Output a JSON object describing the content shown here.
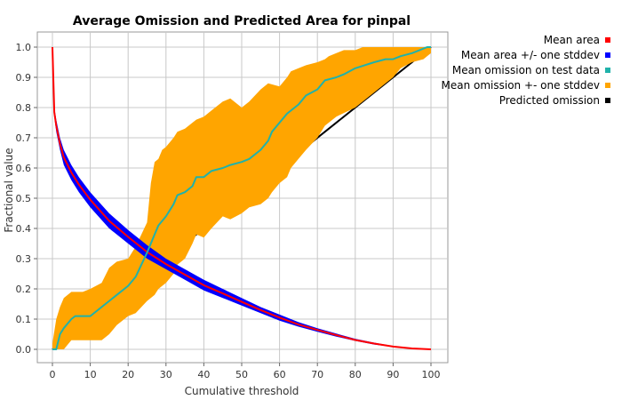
{
  "chart_data": {
    "type": "line",
    "title": "Average Omission and Predicted Area for pinpal",
    "xlabel": "Cumulative threshold",
    "ylabel": "Fractional value",
    "xlim": [
      0,
      100
    ],
    "ylim": [
      0,
      1
    ],
    "xticks": [
      0,
      10,
      20,
      30,
      40,
      50,
      60,
      70,
      80,
      90,
      100
    ],
    "yticks": [
      0.0,
      0.1,
      0.2,
      0.3,
      0.4,
      0.5,
      0.6,
      0.7,
      0.8,
      0.9,
      1.0
    ],
    "ytick_labels": [
      "0.0",
      "0.1",
      "0.2",
      "0.3",
      "0.4",
      "0.5",
      "0.6",
      "0.7",
      "0.8",
      "0.9",
      "1.0"
    ],
    "grid": true,
    "legend_position": "right",
    "legend": [
      {
        "label": "Mean area",
        "color": "#ff0000"
      },
      {
        "label": "Mean area +/- one stddev",
        "color": "#0000ff"
      },
      {
        "label": "Mean omission on test data",
        "color": "#20b2aa"
      },
      {
        "label": "Mean omission +- one stddev",
        "color": "#ffa500"
      },
      {
        "label": "Predicted omission",
        "color": "#000000"
      }
    ],
    "series": [
      {
        "name": "Mean omission +- one stddev (upper)",
        "x": [
          0,
          1,
          2,
          3,
          5,
          6,
          8,
          10,
          13,
          15,
          17,
          20,
          22,
          25,
          26,
          27,
          28,
          29,
          30,
          32,
          33,
          35,
          37,
          38,
          40,
          42,
          45,
          47,
          50,
          52,
          55,
          57,
          60,
          62,
          63,
          65,
          67,
          70,
          72,
          73,
          75,
          77,
          80,
          82,
          85,
          88,
          90,
          92,
          95,
          98,
          100
        ],
        "values": [
          0.02,
          0.1,
          0.14,
          0.17,
          0.19,
          0.19,
          0.19,
          0.2,
          0.22,
          0.27,
          0.29,
          0.3,
          0.34,
          0.42,
          0.55,
          0.62,
          0.63,
          0.66,
          0.67,
          0.7,
          0.72,
          0.73,
          0.75,
          0.76,
          0.77,
          0.79,
          0.82,
          0.83,
          0.8,
          0.82,
          0.86,
          0.88,
          0.87,
          0.9,
          0.92,
          0.93,
          0.94,
          0.95,
          0.96,
          0.97,
          0.98,
          0.99,
          0.99,
          1.0,
          1.0,
          1.0,
          1.0,
          1.0,
          1.0,
          1.0,
          1.0
        ]
      },
      {
        "name": "Mean omission +- one stddev (lower)",
        "x": [
          0,
          1,
          3,
          5,
          6,
          10,
          13,
          15,
          17,
          20,
          22,
          25,
          27,
          28,
          30,
          32,
          33,
          35,
          37,
          38,
          40,
          42,
          45,
          47,
          50,
          52,
          55,
          57,
          58,
          60,
          62,
          63,
          65,
          67,
          70,
          72,
          75,
          80,
          85,
          88,
          90,
          92,
          95,
          98,
          100
        ],
        "values": [
          0.0,
          0.0,
          0.0,
          0.03,
          0.03,
          0.03,
          0.03,
          0.05,
          0.08,
          0.11,
          0.12,
          0.16,
          0.18,
          0.2,
          0.22,
          0.25,
          0.28,
          0.3,
          0.35,
          0.38,
          0.37,
          0.4,
          0.44,
          0.43,
          0.45,
          0.47,
          0.48,
          0.5,
          0.52,
          0.55,
          0.57,
          0.6,
          0.63,
          0.66,
          0.7,
          0.74,
          0.77,
          0.8,
          0.85,
          0.88,
          0.9,
          0.93,
          0.95,
          0.96,
          0.98
        ]
      },
      {
        "name": "Mean omission on test data",
        "x": [
          0,
          1,
          2,
          3,
          5,
          6,
          8,
          10,
          13,
          15,
          17,
          20,
          22,
          25,
          27,
          28,
          30,
          32,
          33,
          35,
          37,
          38,
          40,
          42,
          45,
          47,
          50,
          52,
          55,
          57,
          58,
          60,
          62,
          63,
          65,
          67,
          70,
          72,
          75,
          77,
          80,
          85,
          88,
          90,
          92,
          95,
          97,
          99,
          100
        ],
        "values": [
          0.0,
          0.0,
          0.05,
          0.07,
          0.1,
          0.11,
          0.11,
          0.11,
          0.14,
          0.16,
          0.18,
          0.21,
          0.24,
          0.32,
          0.38,
          0.41,
          0.44,
          0.48,
          0.51,
          0.52,
          0.54,
          0.57,
          0.57,
          0.59,
          0.6,
          0.61,
          0.62,
          0.63,
          0.66,
          0.69,
          0.72,
          0.75,
          0.78,
          0.79,
          0.81,
          0.84,
          0.86,
          0.89,
          0.9,
          0.91,
          0.93,
          0.95,
          0.96,
          0.96,
          0.97,
          0.98,
          0.99,
          1.0,
          1.0
        ]
      },
      {
        "name": "Mean area +/- one stddev (upper)",
        "x": [
          0,
          0.5,
          1,
          2,
          3,
          5,
          7,
          10,
          15,
          20,
          25,
          30,
          35,
          40,
          45,
          50,
          55,
          60,
          65,
          70,
          75,
          80,
          85,
          90,
          95,
          100
        ],
        "values": [
          0.99,
          0.8,
          0.76,
          0.7,
          0.66,
          0.61,
          0.57,
          0.52,
          0.45,
          0.395,
          0.345,
          0.3,
          0.265,
          0.23,
          0.2,
          0.17,
          0.14,
          0.115,
          0.09,
          0.07,
          0.052,
          0.035,
          0.022,
          0.011,
          0.004,
          0.0
        ]
      },
      {
        "name": "Mean area +/- one stddev (lower)",
        "x": [
          0,
          0.5,
          1,
          2,
          3,
          5,
          7,
          10,
          15,
          20,
          25,
          30,
          35,
          40,
          45,
          50,
          55,
          60,
          65,
          70,
          75,
          80,
          85,
          90,
          95,
          100
        ],
        "values": [
          0.99,
          0.77,
          0.72,
          0.66,
          0.61,
          0.56,
          0.52,
          0.47,
          0.4,
          0.35,
          0.3,
          0.265,
          0.23,
          0.195,
          0.17,
          0.145,
          0.12,
          0.095,
          0.075,
          0.058,
          0.042,
          0.028,
          0.016,
          0.008,
          0.002,
          0.0
        ]
      },
      {
        "name": "Mean area",
        "x": [
          0,
          0.5,
          1,
          2,
          3,
          5,
          7,
          10,
          15,
          20,
          25,
          30,
          35,
          40,
          45,
          50,
          55,
          60,
          65,
          70,
          75,
          80,
          85,
          90,
          95,
          100
        ],
        "values": [
          1.0,
          0.785,
          0.74,
          0.68,
          0.635,
          0.585,
          0.545,
          0.495,
          0.425,
          0.372,
          0.322,
          0.282,
          0.247,
          0.212,
          0.185,
          0.157,
          0.13,
          0.105,
          0.082,
          0.064,
          0.047,
          0.031,
          0.019,
          0.009,
          0.003,
          0.0
        ]
      },
      {
        "name": "Predicted omission",
        "x": [
          0,
          100
        ],
        "values": [
          0.0,
          1.0
        ]
      }
    ]
  }
}
